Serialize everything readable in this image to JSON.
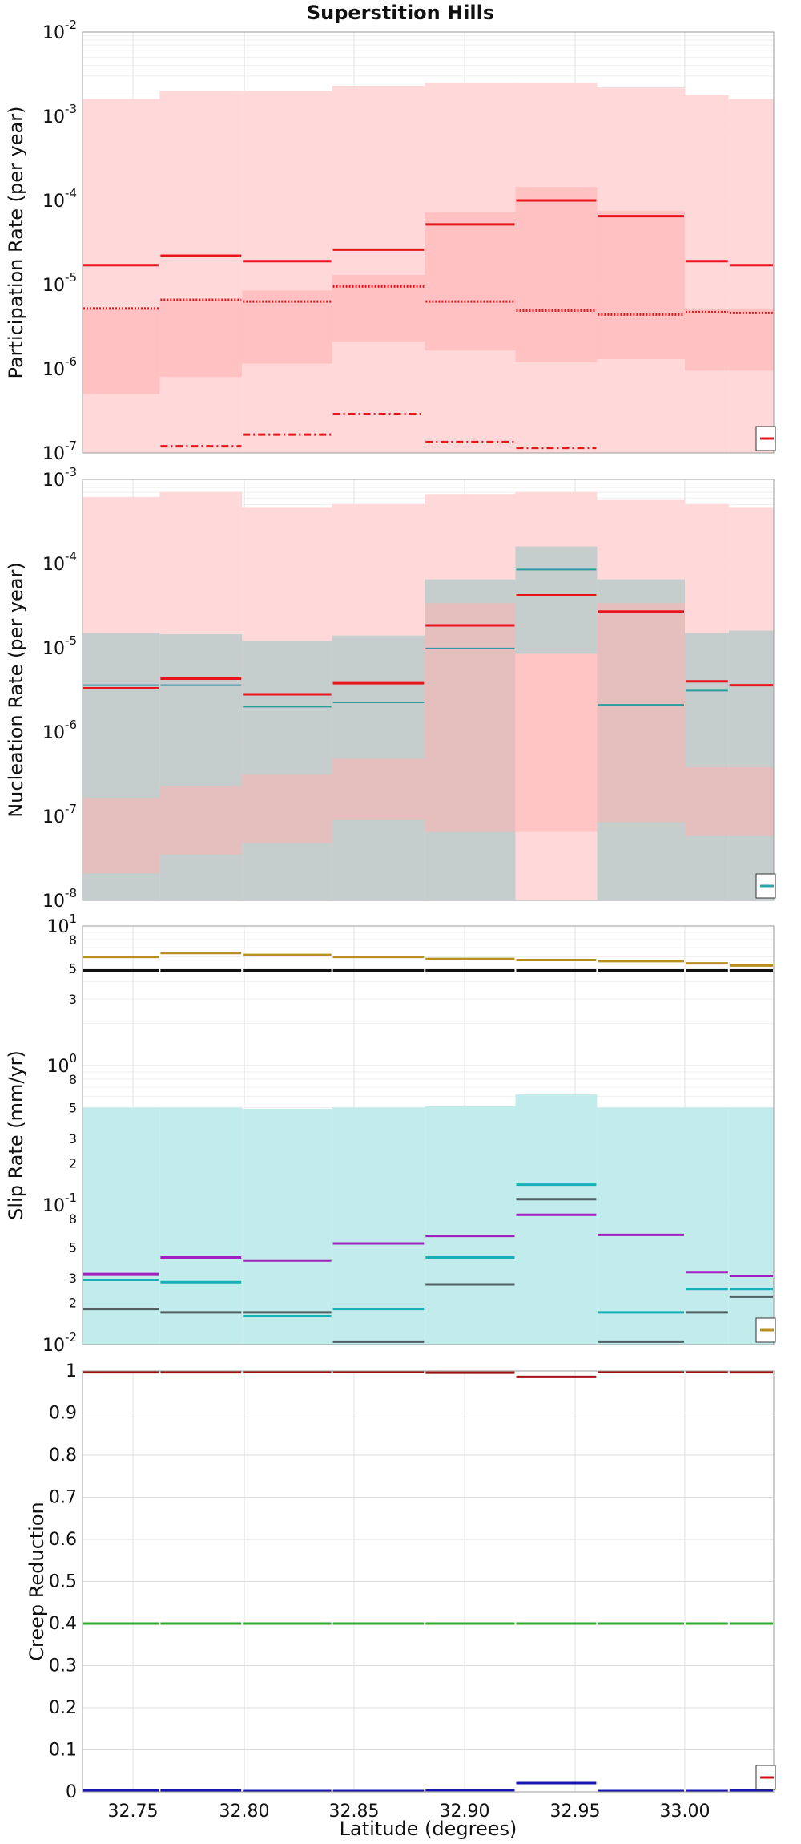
{
  "chart_data": [
    {
      "type": "step",
      "title": "Superstition Hills",
      "ylabel": "Participation Rate (per year)",
      "yscale": "log",
      "ylim": [
        1e-07,
        0.01
      ],
      "xlim": [
        32.725,
        33.035
      ],
      "grid": true,
      "legend_position": "bottom-right",
      "ytick_labels": [
        {
          "base": "10",
          "exp": "-7",
          "v": 1e-07
        },
        {
          "base": "10",
          "exp": "-6",
          "v": 1e-06
        },
        {
          "base": "10",
          "exp": "-5",
          "v": 1e-05
        },
        {
          "base": "10",
          "exp": "-4",
          "v": 0.0001
        },
        {
          "base": "10",
          "exp": "-3",
          "v": 0.001
        },
        {
          "base": "10",
          "exp": "-2",
          "v": 0.01
        }
      ],
      "bin_edges": [
        32.725,
        32.762,
        32.799,
        32.84,
        32.882,
        32.923,
        32.96,
        33.0,
        33.02,
        33.035
      ],
      "bands": [
        {
          "color": "#ffd9d9",
          "opacity": 1,
          "lower": [
            1e-07,
            1e-07,
            1e-07,
            1e-07,
            1e-07,
            1e-07,
            1e-07,
            1e-07,
            1e-07
          ],
          "upper": [
            0.0016,
            0.002,
            0.002,
            0.0023,
            0.0025,
            0.0025,
            0.0022,
            0.0018,
            0.0016
          ]
        },
        {
          "color": "#ffb3b3",
          "opacity": 0.65,
          "lower": [
            5e-07,
            8e-07,
            1.15e-06,
            2.1e-06,
            1.65e-06,
            1.2e-06,
            1.3e-06,
            9.5e-07,
            9.5e-07
          ],
          "upper": [
            5.2e-06,
            6.6e-06,
            8.5e-06,
            1.3e-05,
            7.2e-05,
            0.000145,
            7.5e-05,
            5.2e-06,
            5.2e-06
          ]
        }
      ],
      "series": [
        {
          "style": "solid",
          "color": "#e8161c",
          "width": 3,
          "values": [
            1.7e-05,
            2.2e-05,
            1.9e-05,
            2.6e-05,
            5.2e-05,
            0.0001,
            6.5e-05,
            1.9e-05,
            1.7e-05
          ]
        },
        {
          "style": "dotted",
          "color": "#e8161c",
          "width": 3,
          "values": [
            5.2e-06,
            6.6e-06,
            6.3e-06,
            9.5e-06,
            6.3e-06,
            4.9e-06,
            4.4e-06,
            4.7e-06,
            4.6e-06
          ]
        },
        {
          "style": "dashdot",
          "color": "#e8161c",
          "width": 3,
          "values": [
            null,
            1.2e-07,
            1.65e-07,
            2.9e-07,
            1.35e-07,
            1.15e-07,
            null,
            null,
            null
          ]
        }
      ],
      "legend": [
        {
          "color": "#e8161c"
        }
      ]
    },
    {
      "type": "step",
      "ylabel": "Nucleation Rate (per year)",
      "yscale": "log",
      "ylim": [
        1e-08,
        0.001
      ],
      "xlim": [
        32.725,
        33.035
      ],
      "grid": true,
      "legend_position": "bottom-right",
      "ytick_labels": [
        {
          "base": "10",
          "exp": "-8",
          "v": 1e-08
        },
        {
          "base": "10",
          "exp": "-7",
          "v": 1e-07
        },
        {
          "base": "10",
          "exp": "-6",
          "v": 1e-06
        },
        {
          "base": "10",
          "exp": "-5",
          "v": 1e-05
        },
        {
          "base": "10",
          "exp": "-4",
          "v": 0.0001
        },
        {
          "base": "10",
          "exp": "-3",
          "v": 0.001
        }
      ],
      "bin_edges": [
        32.725,
        32.762,
        32.799,
        32.84,
        32.882,
        32.923,
        32.96,
        33.0,
        33.02,
        33.035
      ],
      "bands": [
        {
          "color": "#ffd9d9",
          "opacity": 1,
          "lower": [
            1e-08,
            1e-08,
            1e-08,
            1e-08,
            1e-08,
            1e-08,
            1e-08,
            1e-08,
            1e-08
          ],
          "upper": [
            0.00062,
            0.00071,
            0.00047,
            0.00051,
            0.00067,
            0.00071,
            0.00057,
            0.00051,
            0.00047
          ]
        },
        {
          "color": "#c6cdcd",
          "opacity": 1,
          "lower": [
            1e-08,
            1e-08,
            1e-08,
            1e-08,
            1e-08,
            null,
            1e-08,
            1e-08,
            1e-08
          ],
          "upper": [
            1.5e-05,
            1.45e-05,
            1.2e-05,
            1.4e-05,
            6.5e-05,
            null,
            6.5e-05,
            1.5e-05,
            1.6e-05
          ]
        },
        {
          "color": "#ffb3b3",
          "opacity": 0.55,
          "lower": [
            2.1e-08,
            3.5e-08,
            4.8e-08,
            9e-08,
            6.5e-08,
            6.5e-08,
            8.5e-08,
            5.8e-08,
            5.8e-08
          ],
          "upper": [
            1.65e-07,
            2.3e-07,
            3.1e-07,
            4.8e-07,
            3.4e-05,
            8.5e-06,
            3.4e-05,
            3.8e-07,
            3.8e-07
          ]
        },
        {
          "color": "#c6cdcd",
          "opacity": 1,
          "lower": [
            null,
            null,
            null,
            null,
            null,
            8.5e-06,
            null,
            null,
            null
          ],
          "upper": [
            null,
            null,
            null,
            null,
            null,
            0.00016,
            null,
            null,
            null
          ]
        }
      ],
      "series": [
        {
          "style": "solid",
          "color": "#2d9aa0",
          "width": 2,
          "values": [
            3.6e-06,
            3.6e-06,
            2e-06,
            2.25e-06,
            9.8e-06,
            8.5e-05,
            2.1e-06,
            3.1e-06,
            3.6e-06
          ]
        },
        {
          "style": "solid",
          "color": "#e8161c",
          "width": 3,
          "values": [
            3.3e-06,
            4.3e-06,
            2.8e-06,
            3.8e-06,
            1.85e-05,
            4.2e-05,
            2.7e-05,
            4e-06,
            3.6e-06
          ]
        }
      ],
      "legend": [
        {
          "color": "#2aa6aa"
        }
      ]
    },
    {
      "type": "step",
      "ylabel": "Slip Rate (mm/yr)",
      "yscale": "log",
      "ylim": [
        0.01,
        10.0
      ],
      "xlim": [
        32.725,
        33.035
      ],
      "grid": true,
      "legend_position": "bottom-right",
      "ytick_labels": [
        {
          "base": "10",
          "exp": "-2",
          "v": 0.01
        },
        {
          "base": "10",
          "exp": "-1",
          "v": 0.1
        },
        {
          "base": "10",
          "exp": "0",
          "v": 1
        },
        {
          "base": "10",
          "exp": "1",
          "v": 10
        }
      ],
      "minor_tick_labels": [
        {
          "t": "2",
          "v": 0.02
        },
        {
          "t": "3",
          "v": 0.03
        },
        {
          "t": "5",
          "v": 0.05
        },
        {
          "t": "8",
          "v": 0.08
        },
        {
          "t": "2",
          "v": 0.2
        },
        {
          "t": "3",
          "v": 0.3
        },
        {
          "t": "5",
          "v": 0.5
        },
        {
          "t": "8",
          "v": 0.8
        },
        {
          "t": "3",
          "v": 3
        },
        {
          "t": "5",
          "v": 5
        },
        {
          "t": "8",
          "v": 8
        }
      ],
      "bin_edges": [
        32.725,
        32.762,
        32.799,
        32.84,
        32.882,
        32.923,
        32.96,
        33.0,
        33.02,
        33.035
      ],
      "bands": [
        {
          "color": "#c2ecec",
          "opacity": 1,
          "lower": [
            0.01,
            0.01,
            0.01,
            0.01,
            0.01,
            0.01,
            0.01,
            0.01,
            0.01
          ],
          "upper": [
            0.5,
            0.5,
            0.49,
            0.5,
            0.51,
            0.62,
            0.5,
            0.5,
            0.5
          ]
        }
      ],
      "series": [
        {
          "style": "solid",
          "color": "#b8901f",
          "width": 3,
          "values": [
            6.0,
            6.4,
            6.2,
            6.0,
            5.8,
            5.7,
            5.6,
            5.4,
            5.2
          ]
        },
        {
          "style": "solid",
          "color": "#111111",
          "width": 3,
          "values": [
            4.8,
            4.8,
            4.8,
            4.8,
            4.8,
            4.8,
            4.8,
            4.8,
            4.8
          ]
        },
        {
          "style": "solid",
          "color": "#1aaeb8",
          "width": 3,
          "values": [
            0.029,
            0.028,
            0.016,
            0.018,
            0.042,
            0.14,
            0.017,
            0.025,
            0.025
          ]
        },
        {
          "style": "solid",
          "color": "#4f5f62",
          "width": 3,
          "values": [
            0.018,
            0.017,
            0.017,
            0.0105,
            0.027,
            0.11,
            0.0105,
            0.017,
            0.022
          ]
        },
        {
          "style": "solid",
          "color": "#a020c0",
          "width": 3,
          "values": [
            0.032,
            0.042,
            0.04,
            0.053,
            0.06,
            0.085,
            0.061,
            0.033,
            0.031
          ]
        }
      ],
      "legend": [
        {
          "color": "#b8901f"
        }
      ]
    },
    {
      "type": "step",
      "ylabel": "Creep Reduction",
      "xlabel": "Latitude (degrees)",
      "yscale": "linear",
      "ylim": [
        0,
        1
      ],
      "xlim": [
        32.725,
        33.035
      ],
      "grid": true,
      "legend_position": "bottom-right",
      "yticks": [
        0,
        0.1,
        0.2,
        0.3,
        0.4,
        0.5,
        0.6,
        0.7,
        0.8,
        0.9,
        1
      ],
      "ytick_labels": [
        "0",
        "0.1",
        "0.2",
        "0.3",
        "0.4",
        "0.5",
        "0.6",
        "0.7",
        "0.8",
        "0.9",
        "1"
      ],
      "xticks": [
        32.75,
        32.8,
        32.85,
        32.9,
        32.95,
        33.0
      ],
      "xtick_labels": [
        "32.75",
        "32.80",
        "32.85",
        "32.90",
        "32.95",
        "33.00"
      ],
      "bin_edges": [
        32.725,
        32.762,
        32.799,
        32.84,
        32.882,
        32.923,
        32.96,
        33.0,
        33.02,
        33.035
      ],
      "series": [
        {
          "style": "solid",
          "color": "#a01010",
          "width": 3,
          "values": [
            0.997,
            0.997,
            0.998,
            0.998,
            0.996,
            0.986,
            0.998,
            0.998,
            0.997
          ]
        },
        {
          "style": "solid",
          "color": "#2aab2a",
          "width": 3,
          "values": [
            0.4,
            0.4,
            0.4,
            0.4,
            0.4,
            0.4,
            0.4,
            0.4,
            0.4
          ]
        },
        {
          "style": "solid",
          "color": "#1616b0",
          "width": 3,
          "values": [
            0.003,
            0.003,
            0.002,
            0.002,
            0.004,
            0.021,
            0.002,
            0.002,
            0.003
          ]
        }
      ],
      "legend": [
        {
          "color": "#cc1111"
        }
      ]
    }
  ]
}
